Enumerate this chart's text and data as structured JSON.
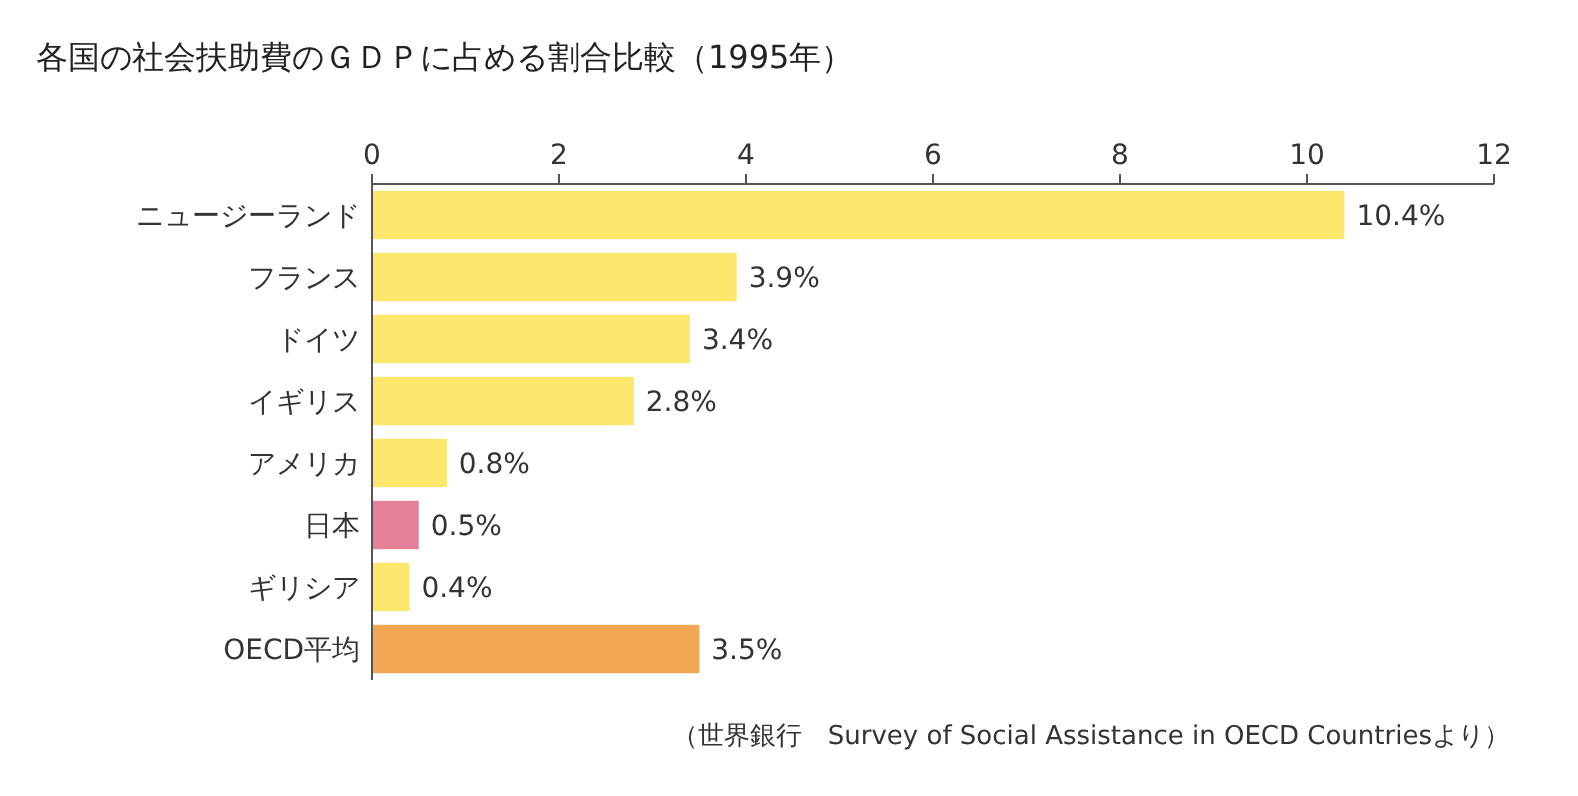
{
  "chart_data": {
    "type": "bar",
    "orientation": "horizontal",
    "title": "各国の社会扶助費のＧＤＰに占める割合比較（1995年）",
    "categories": [
      "ニュージーランド",
      "フランス",
      "ドイツ",
      "イギリス",
      "アメリカ",
      "日本",
      "ギリシア",
      "OECD平均"
    ],
    "values": [
      10.4,
      3.9,
      3.4,
      2.8,
      0.8,
      0.5,
      0.4,
      3.5
    ],
    "colors": [
      "#fce76c",
      "#fce76c",
      "#fce76c",
      "#fce76c",
      "#fce76c",
      "#e48097",
      "#fce76c",
      "#f2a552"
    ],
    "value_labels": [
      "10.4%",
      "3.9%",
      "3.4%",
      "2.8%",
      "0.8%",
      "0.5%",
      "0.4%",
      "3.5%"
    ],
    "xlim": [
      0,
      12
    ],
    "xticks": [
      0,
      2,
      4,
      6,
      8,
      10,
      12
    ],
    "annotations": [
      "（世界銀行　Survey of Social Assistance in OECD Countriesより）"
    ]
  }
}
